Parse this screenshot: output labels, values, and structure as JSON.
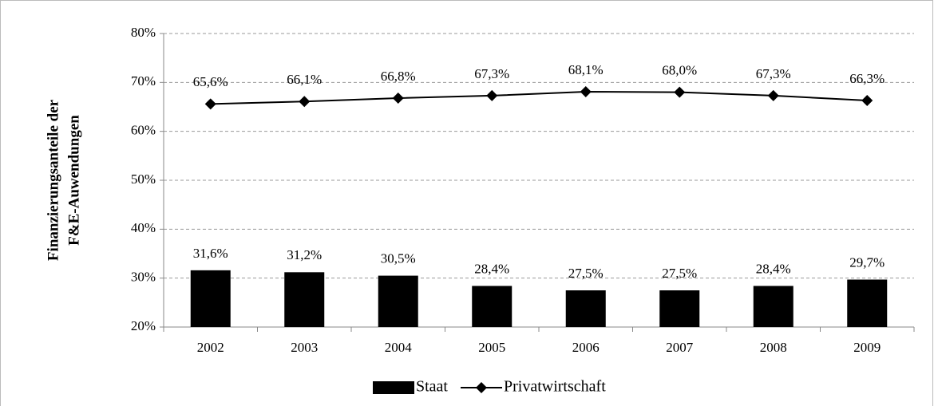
{
  "chart_data": {
    "type": "combo",
    "ylabel": [
      "Finanzierungsanteile der",
      "F&E-Auwendungen"
    ],
    "categories": [
      "2002",
      "2003",
      "2004",
      "2005",
      "2006",
      "2007",
      "2008",
      "2009"
    ],
    "series": [
      {
        "name": "Staat",
        "type": "bar",
        "color": "#000000",
        "values": [
          31.6,
          31.2,
          30.5,
          28.4,
          27.5,
          27.5,
          28.4,
          29.7
        ],
        "value_labels": [
          "31,6%",
          "31,2%",
          "30,5%",
          "28,4%",
          "27,5%",
          "27,5%",
          "28,4%",
          "29,7%"
        ]
      },
      {
        "name": "Privatwirtschaft",
        "type": "line",
        "color": "#000000",
        "values": [
          65.6,
          66.1,
          66.8,
          67.3,
          68.1,
          68.0,
          67.3,
          66.3
        ],
        "value_labels": [
          "65,6%",
          "66,1%",
          "66,8%",
          "67,3%",
          "68,1%",
          "68,0%",
          "67,3%",
          "66,3%"
        ]
      }
    ],
    "ylim": [
      20,
      80
    ],
    "yticks": [
      {
        "value": 20,
        "label": "20%"
      },
      {
        "value": 30,
        "label": "30%"
      },
      {
        "value": 40,
        "label": "40%"
      },
      {
        "value": 50,
        "label": "50%"
      },
      {
        "value": 60,
        "label": "60%"
      },
      {
        "value": 70,
        "label": "70%"
      },
      {
        "value": 80,
        "label": "80%"
      }
    ],
    "grid": true,
    "legend": "bottom"
  }
}
